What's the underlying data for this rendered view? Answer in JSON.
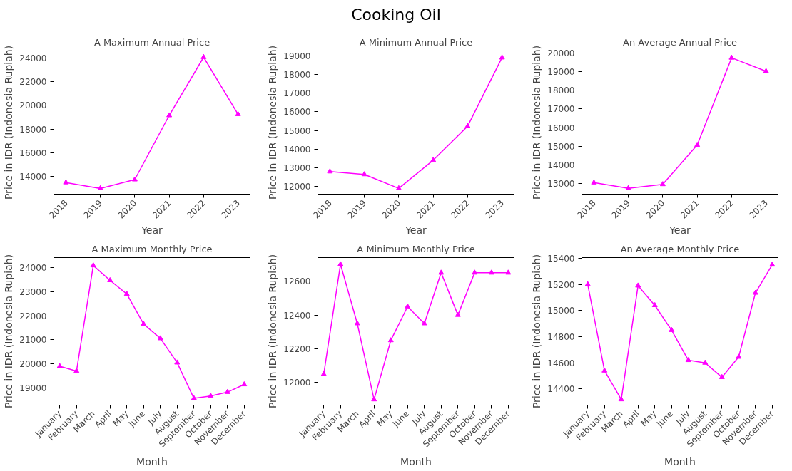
{
  "chart_data": [
    {
      "type": "line",
      "title": "A Maximum Annual Price",
      "annotations": [
        "Cooking Oil"
      ],
      "xlabel": "Year",
      "ylabel": "Price in IDR (Indonesia Rupiah)",
      "categories": [
        "2018",
        "2019",
        "2020",
        "2021",
        "2022",
        "2023"
      ],
      "series": [
        {
          "color": "#ff00ff",
          "values": [
            13450,
            12950,
            13700,
            19150,
            24100,
            19250
          ]
        }
      ],
      "ylim": [
        12460,
        24630
      ],
      "yticks": [
        14000,
        16000,
        18000,
        20000,
        22000,
        24000
      ],
      "marker": "triangle",
      "line_style": "solid",
      "grid": false
    },
    {
      "type": "line",
      "title": "A Minimum Annual Price",
      "xlabel": "Year",
      "ylabel": "Price in IDR (Indonesia Rupiah)",
      "categories": [
        "2018",
        "2019",
        "2020",
        "2021",
        "2022",
        "2023"
      ],
      "series": [
        {
          "color": "#ff00ff",
          "values": [
            12800,
            12650,
            11900,
            13410,
            15230,
            18900
          ]
        }
      ],
      "ylim": [
        11590,
        19260
      ],
      "yticks": [
        12000,
        13000,
        14000,
        15000,
        16000,
        17000,
        18000,
        19000
      ],
      "marker": "triangle",
      "line_style": "solid",
      "grid": false
    },
    {
      "type": "line",
      "title": "An Average Annual Price",
      "xlabel": "Year",
      "ylabel": "Price in IDR (Indonesia Rupiah)",
      "categories": [
        "2018",
        "2019",
        "2020",
        "2021",
        "2022",
        "2023"
      ],
      "series": [
        {
          "color": "#ff00ff",
          "values": [
            13040,
            12740,
            12950,
            15060,
            19750,
            19030
          ]
        }
      ],
      "ylim": [
        12420,
        20120
      ],
      "yticks": [
        13000,
        14000,
        15000,
        16000,
        17000,
        18000,
        19000,
        20000
      ],
      "marker": "triangle",
      "line_style": "solid",
      "grid": false
    },
    {
      "type": "line",
      "title": "A Maximum Monthly Price",
      "xlabel": "Month",
      "ylabel": "Price in IDR (Indonesia Rupiah)",
      "categories": [
        "January",
        "February",
        "March",
        "April",
        "May",
        "June",
        "July",
        "August",
        "September",
        "October",
        "November",
        "December"
      ],
      "series": [
        {
          "color": "#ff00ff",
          "values": [
            19900,
            19700,
            24100,
            23480,
            22910,
            21660,
            21060,
            20050,
            18560,
            18660,
            18820,
            19140
          ]
        }
      ],
      "ylim": [
        18280,
        24430
      ],
      "yticks": [
        19000,
        20000,
        21000,
        22000,
        23000,
        24000
      ],
      "marker": "triangle",
      "line_style": "solid",
      "grid": false
    },
    {
      "type": "line",
      "title": "A Minimum Monthly Price",
      "xlabel": "Month",
      "ylabel": "Price in IDR (Indonesia Rupiah)",
      "categories": [
        "January",
        "February",
        "March",
        "April",
        "May",
        "June",
        "July",
        "August",
        "September",
        "October",
        "November",
        "December"
      ],
      "series": [
        {
          "color": "#ff00ff",
          "values": [
            12050,
            12700,
            12350,
            11900,
            12250,
            12450,
            12350,
            12650,
            12400,
            12650,
            12650,
            12650
          ]
        }
      ],
      "ylim": [
        11867,
        12740
      ],
      "yticks": [
        12000,
        12200,
        12400,
        12600
      ],
      "marker": "triangle",
      "line_style": "solid",
      "grid": false
    },
    {
      "type": "line",
      "title": "An Average Monthly Price",
      "xlabel": "Month",
      "ylabel": "Price in IDR (Indonesia Rupiah)",
      "categories": [
        "January",
        "February",
        "March",
        "April",
        "May",
        "June",
        "July",
        "August",
        "September",
        "October",
        "November",
        "December"
      ],
      "series": [
        {
          "color": "#ff00ff",
          "values": [
            15200,
            14540,
            14320,
            15190,
            15040,
            14850,
            14620,
            14600,
            14490,
            14645,
            15135,
            15350
          ]
        }
      ],
      "ylim": [
        14277,
        15405
      ],
      "yticks": [
        14400,
        14600,
        14800,
        15000,
        15200,
        15400
      ],
      "marker": "triangle",
      "line_style": "solid",
      "grid": false
    }
  ]
}
